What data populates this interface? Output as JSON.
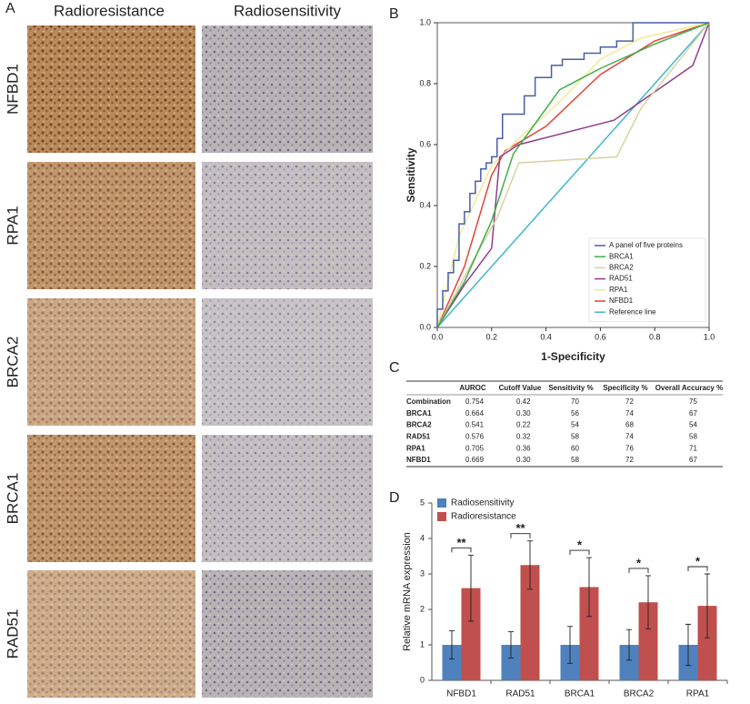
{
  "panel_labels": {
    "a": "A",
    "b": "B",
    "c": "C",
    "d": "D"
  },
  "panel_a": {
    "columns": [
      "Radioresistance",
      "Radiosensitivity"
    ],
    "rows": [
      "NFBD1",
      "RPA1",
      "BRCA2",
      "BRCA1",
      "RAD51"
    ]
  },
  "chart_data": [
    {
      "type": "line",
      "x_label": "1-Specificity",
      "y_label": "Sensitivity",
      "xlim": [
        0,
        1
      ],
      "ylim": [
        0,
        1
      ],
      "xticks": [
        {
          "value": 0,
          "label": "0.0"
        },
        {
          "value": 0.2,
          "label": "0.2"
        },
        {
          "value": 0.4,
          "label": "0.4"
        },
        {
          "value": 0.6,
          "label": "0.6"
        },
        {
          "value": 0.8,
          "label": "0.8"
        },
        {
          "value": 1,
          "label": "1.0"
        }
      ],
      "yticks": [
        {
          "value": 0,
          "label": "0.0"
        },
        {
          "value": 0.2,
          "label": "0.2"
        },
        {
          "value": 0.4,
          "label": "0.4"
        },
        {
          "value": 0.6,
          "label": "0.6"
        },
        {
          "value": 0.8,
          "label": "0.8"
        },
        {
          "value": 1,
          "label": "1.0"
        }
      ],
      "legend": "lower right",
      "series": [
        {
          "name": "A panel of five proteins",
          "color": "#4a5ea8",
          "x": [
            0,
            0,
            0.02,
            0.02,
            0.04,
            0.04,
            0.06,
            0.06,
            0.08,
            0.08,
            0.1,
            0.1,
            0.12,
            0.12,
            0.14,
            0.14,
            0.16,
            0.16,
            0.18,
            0.18,
            0.2,
            0.2,
            0.22,
            0.22,
            0.24,
            0.24,
            0.32,
            0.32,
            0.36,
            0.36,
            0.42,
            0.42,
            0.46,
            0.46,
            0.54,
            0.54,
            0.6,
            0.6,
            0.66,
            0.66,
            0.72,
            0.72,
            1
          ],
          "values": [
            0,
            0.06,
            0.06,
            0.12,
            0.12,
            0.18,
            0.18,
            0.22,
            0.22,
            0.34,
            0.34,
            0.38,
            0.38,
            0.44,
            0.44,
            0.48,
            0.48,
            0.52,
            0.52,
            0.54,
            0.54,
            0.56,
            0.56,
            0.62,
            0.62,
            0.7,
            0.7,
            0.76,
            0.76,
            0.82,
            0.82,
            0.86,
            0.86,
            0.88,
            0.88,
            0.9,
            0.9,
            0.92,
            0.92,
            0.94,
            0.94,
            1,
            1
          ]
        },
        {
          "name": "BRCA1",
          "color": "#3fae49",
          "x": [
            0,
            0.1,
            0.2,
            0.28,
            0.45,
            0.6,
            0.8,
            1
          ],
          "values": [
            0,
            0.15,
            0.35,
            0.57,
            0.78,
            0.85,
            0.93,
            1
          ]
        },
        {
          "name": "BRCA2",
          "color": "#d8d2a0",
          "x": [
            0,
            0.12,
            0.22,
            0.3,
            0.66,
            0.75,
            1
          ],
          "values": [
            0,
            0.2,
            0.36,
            0.54,
            0.56,
            0.72,
            1
          ]
        },
        {
          "name": "RAD51",
          "color": "#8e3d8c",
          "x": [
            0,
            0.1,
            0.2,
            0.23,
            0.3,
            0.65,
            0.94,
            1
          ],
          "values": [
            0,
            0.14,
            0.26,
            0.56,
            0.6,
            0.68,
            0.86,
            1
          ]
        },
        {
          "name": "RPA1",
          "color": "#f2eb96",
          "x": [
            0,
            0.08,
            0.2,
            0.3,
            0.45,
            0.6,
            0.75,
            1
          ],
          "values": [
            0,
            0.3,
            0.53,
            0.62,
            0.74,
            0.88,
            0.95,
            1
          ]
        },
        {
          "name": "NFBD1",
          "color": "#e0453a",
          "x": [
            0,
            0.1,
            0.2,
            0.25,
            0.4,
            0.6,
            0.8,
            1
          ],
          "values": [
            0,
            0.2,
            0.5,
            0.58,
            0.66,
            0.83,
            0.94,
            1
          ]
        },
        {
          "name": "Reference line",
          "color": "#40b8c8",
          "x": [
            0,
            1
          ],
          "values": [
            0,
            1
          ]
        }
      ]
    },
    {
      "type": "bar",
      "y_label": "Relative mRNA expression",
      "categories": [
        "NFBD1",
        "RAD51",
        "BRCA1",
        "BRCA2",
        "RPA1"
      ],
      "ylim": [
        0,
        5
      ],
      "yticks": [
        0,
        1,
        2,
        3,
        4,
        5
      ],
      "legend": "upper left",
      "series": [
        {
          "name": "Radiosensitivity",
          "color": "#4f81bd",
          "values": [
            1,
            1,
            1,
            1,
            1
          ],
          "errors": [
            0.4,
            0.37,
            0.52,
            0.43,
            0.58
          ]
        },
        {
          "name": "Radioresistance",
          "color": "#c0504d",
          "values": [
            2.6,
            3.25,
            2.63,
            2.2,
            2.1
          ],
          "errors": [
            0.93,
            0.68,
            0.83,
            0.75,
            0.9
          ]
        }
      ],
      "significance": [
        "**",
        "**",
        "*",
        "*",
        "*"
      ]
    }
  ],
  "table": {
    "header": [
      "",
      "AUROC",
      "Cutoff Value",
      "Sensitivity %",
      "Specificity %",
      "Overall Accuracy %"
    ],
    "rows": [
      [
        "Combination",
        "0.754",
        "0.42",
        "70",
        "72",
        "75"
      ],
      [
        "BRCA1",
        "0.664",
        "0.30",
        "56",
        "74",
        "67"
      ],
      [
        "BRCA2",
        "0.541",
        "0.22",
        "54",
        "68",
        "54"
      ],
      [
        "RAD51",
        "0.576",
        "0.32",
        "58",
        "74",
        "58"
      ],
      [
        "RPA1",
        "0.705",
        "0.36",
        "60",
        "76",
        "71"
      ],
      [
        "NFBD1",
        "0.669",
        "0.30",
        "58",
        "72",
        "67"
      ]
    ]
  }
}
